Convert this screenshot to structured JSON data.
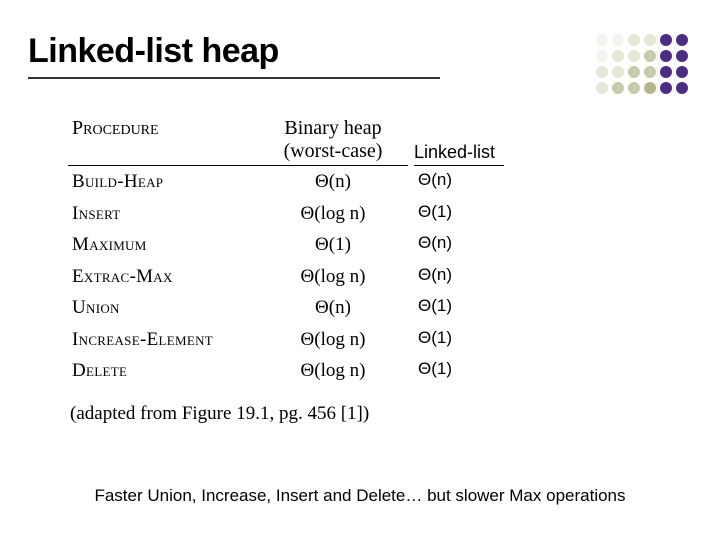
{
  "title": "Linked-list heap",
  "decor": {
    "dot_colors": [
      "#f5f5f0",
      "#f5f5f0",
      "#e6e6d8",
      "#e6e6d8",
      "#4b2e83",
      "#4b2e83",
      "#f5f5f0",
      "#e6e6d8",
      "#e6e6d8",
      "#c9c9b0",
      "#4b2e83",
      "#4b2e83",
      "#e6e6d8",
      "#e6e6d8",
      "#c9c9b0",
      "#c9c9b0",
      "#4b2e83",
      "#4b2e83",
      "#e6e6d8",
      "#c9c9b0",
      "#c9c9b0",
      "#b5b58e",
      "#4b2e83",
      "#4b2e83"
    ]
  },
  "table": {
    "headers": {
      "procedure": "Procedure",
      "binary_line1": "Binary heap",
      "binary_line2": "(worst-case)",
      "linkedlist": "Linked-list"
    },
    "rows": [
      {
        "proc": "Build-Heap",
        "bin": "Θ(n)",
        "ll": "Θ(n)"
      },
      {
        "proc": "Insert",
        "bin": "Θ(log n)",
        "ll": "Θ(1)"
      },
      {
        "proc": "Maximum",
        "bin": "Θ(1)",
        "ll": "Θ(n)"
      },
      {
        "proc": "Extrac-Max",
        "bin": "Θ(log n)",
        "ll": "Θ(n)"
      },
      {
        "proc": "Union",
        "bin": "Θ(n)",
        "ll": "Θ(1)"
      },
      {
        "proc": "Increase-Element",
        "bin": "Θ(log n)",
        "ll": "Θ(1)"
      },
      {
        "proc": "Delete",
        "bin": "Θ(log n)",
        "ll": "Θ(1)"
      }
    ],
    "caption": "(adapted from Figure 19.1, pg. 456 [1])"
  },
  "footer": "Faster Union, Increase, Insert and Delete… but slower Max operations"
}
